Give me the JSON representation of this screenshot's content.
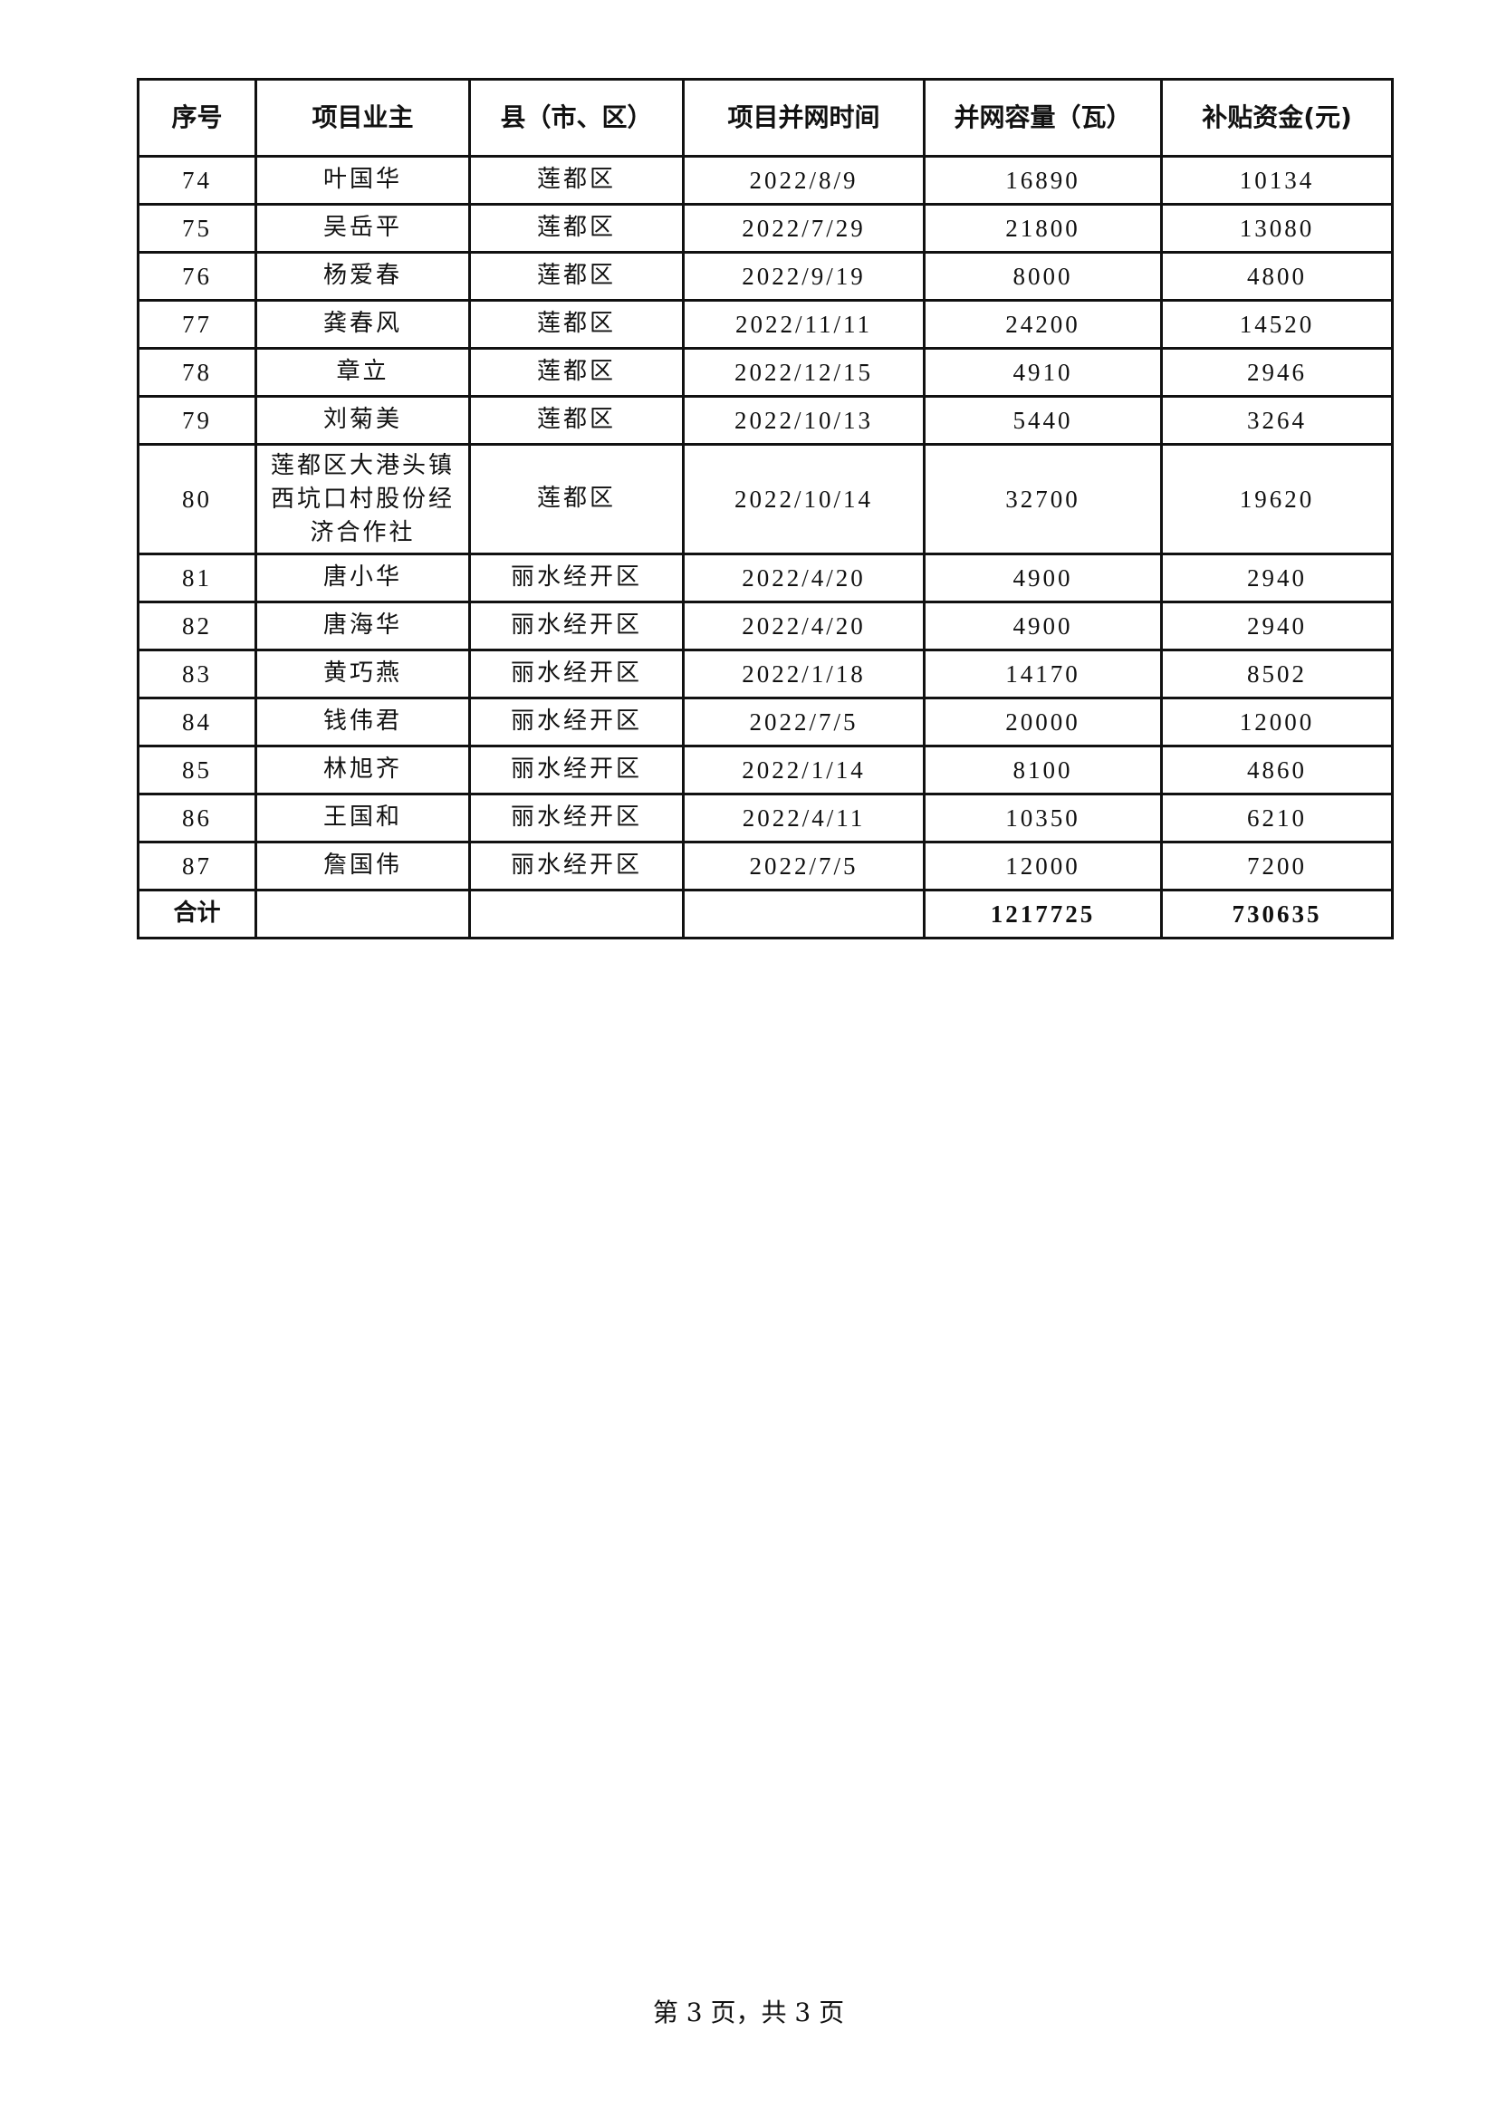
{
  "table": {
    "headers": [
      "序号",
      "项目业主",
      "县（市、区）",
      "项目并网时间",
      "并网容量（瓦）",
      "补贴资金(元)"
    ],
    "rows": [
      {
        "no": "74",
        "owner": "叶国华",
        "county": "莲都区",
        "date": "2022/8/9",
        "capacity": "16890",
        "subsidy": "10134"
      },
      {
        "no": "75",
        "owner": "吴岳平",
        "county": "莲都区",
        "date": "2022/7/29",
        "capacity": "21800",
        "subsidy": "13080"
      },
      {
        "no": "76",
        "owner": "杨爱春",
        "county": "莲都区",
        "date": "2022/9/19",
        "capacity": "8000",
        "subsidy": "4800"
      },
      {
        "no": "77",
        "owner": "龚春风",
        "county": "莲都区",
        "date": "2022/11/11",
        "capacity": "24200",
        "subsidy": "14520"
      },
      {
        "no": "78",
        "owner": "章立",
        "county": "莲都区",
        "date": "2022/12/15",
        "capacity": "4910",
        "subsidy": "2946"
      },
      {
        "no": "79",
        "owner": "刘菊美",
        "county": "莲都区",
        "date": "2022/10/13",
        "capacity": "5440",
        "subsidy": "3264"
      },
      {
        "no": "80",
        "owner": "莲都区大港头镇西坑口村股份经济合作社",
        "county": "莲都区",
        "date": "2022/10/14",
        "capacity": "32700",
        "subsidy": "19620"
      },
      {
        "no": "81",
        "owner": "唐小华",
        "county": "丽水经开区",
        "date": "2022/4/20",
        "capacity": "4900",
        "subsidy": "2940"
      },
      {
        "no": "82",
        "owner": "唐海华",
        "county": "丽水经开区",
        "date": "2022/4/20",
        "capacity": "4900",
        "subsidy": "2940"
      },
      {
        "no": "83",
        "owner": "黄巧燕",
        "county": "丽水经开区",
        "date": "2022/1/18",
        "capacity": "14170",
        "subsidy": "8502"
      },
      {
        "no": "84",
        "owner": "钱伟君",
        "county": "丽水经开区",
        "date": "2022/7/5",
        "capacity": "20000",
        "subsidy": "12000"
      },
      {
        "no": "85",
        "owner": "林旭齐",
        "county": "丽水经开区",
        "date": "2022/1/14",
        "capacity": "8100",
        "subsidy": "4860"
      },
      {
        "no": "86",
        "owner": "王国和",
        "county": "丽水经开区",
        "date": "2022/4/11",
        "capacity": "10350",
        "subsidy": "6210"
      },
      {
        "no": "87",
        "owner": "詹国伟",
        "county": "丽水经开区",
        "date": "2022/7/5",
        "capacity": "12000",
        "subsidy": "7200"
      }
    ],
    "total": {
      "label": "合计",
      "capacity": "1217725",
      "subsidy": "730635"
    }
  },
  "footer": {
    "page_label": "第 3 页，共 3 页"
  }
}
